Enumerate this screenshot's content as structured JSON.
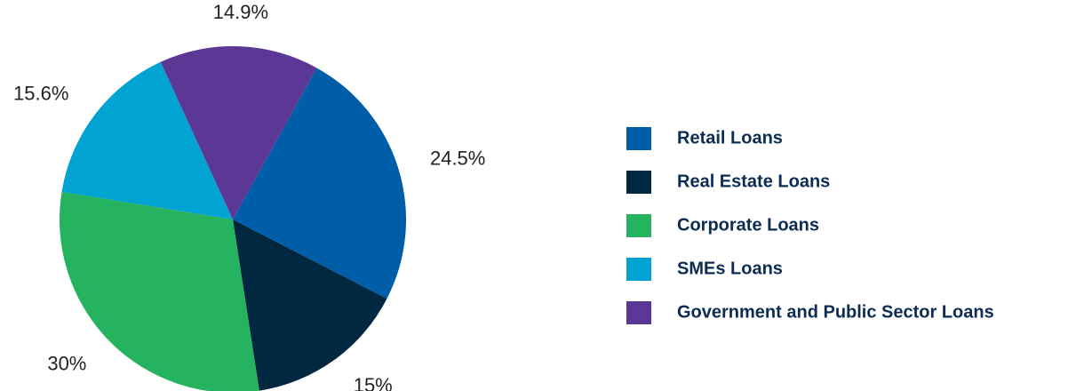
{
  "chart_data": {
    "type": "pie",
    "categories": [
      "Retail Loans",
      "Real Estate Loans",
      "Corporate Loans",
      "SMEs Loans",
      "Government and Public Sector Loans"
    ],
    "values": [
      24.5,
      15,
      30,
      15.6,
      14.9
    ],
    "value_labels": [
      "24.5%",
      "15%",
      "30%",
      "15.6%",
      "14.9%"
    ],
    "colors": [
      "#005ea8",
      "#002840",
      "#25b35f",
      "#00a3d2",
      "#5b3896"
    ],
    "legend": "right"
  }
}
